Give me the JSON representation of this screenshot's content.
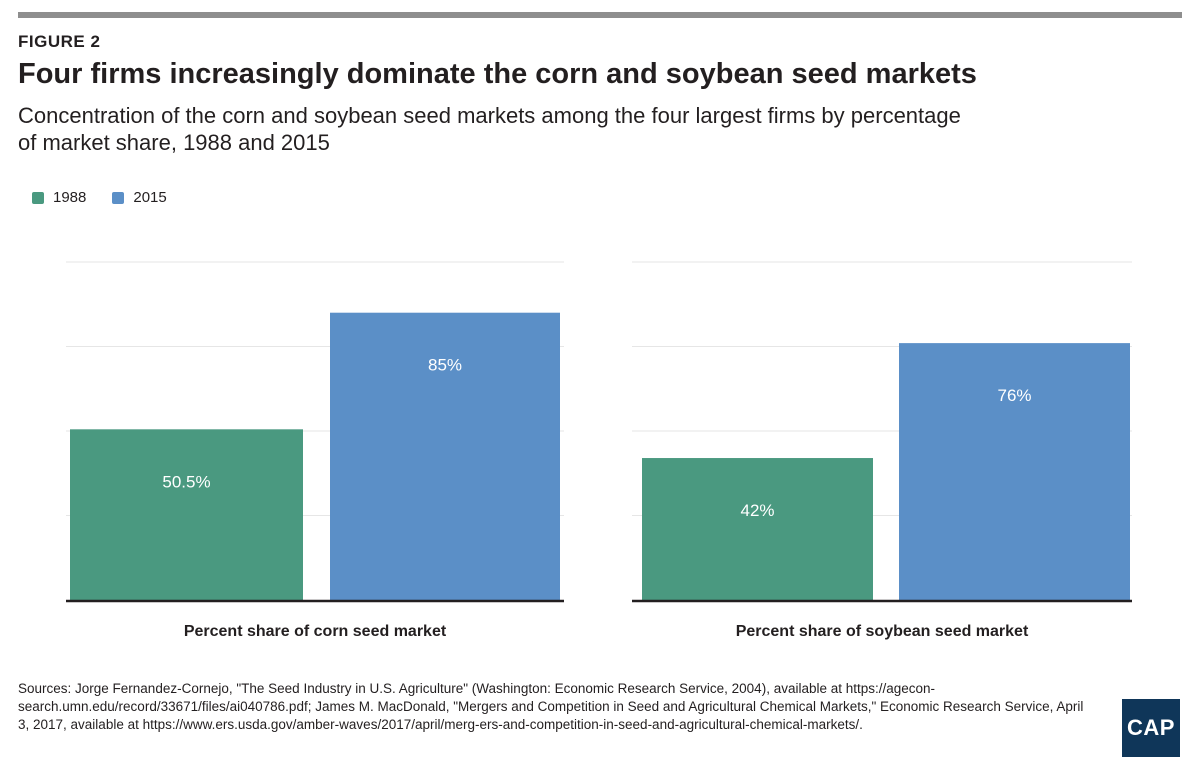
{
  "header": {
    "figure_label": "FIGURE 2",
    "title": "Four firms increasingly dominate the corn and soybean seed markets",
    "subtitle": "Concentration of the corn and soybean seed markets among the four largest firms by percentage of market share, 1988 and 2015"
  },
  "colors": {
    "c1988": "#4a9980",
    "c2015": "#5b8fc7",
    "grid": "#e6e6e6",
    "axis": "#231f20"
  },
  "chart_data": {
    "type": "bar",
    "title": "Four firms increasingly dominate the corn and soybean seed markets",
    "ylabel": "",
    "ylim": [
      0,
      100
    ],
    "grid": true,
    "legend": "top-left",
    "series": [
      {
        "name": "1988",
        "color": "#4a9980"
      },
      {
        "name": "2015",
        "color": "#5b8fc7"
      }
    ],
    "panels": [
      {
        "xlabel": "Percent share of corn seed market",
        "values": [
          50.5,
          85
        ],
        "labels": [
          "50.5%",
          "85%"
        ]
      },
      {
        "xlabel": "Percent share of soybean seed market",
        "values": [
          42,
          76
        ],
        "labels": [
          "42%",
          "76%"
        ]
      }
    ]
  },
  "sources": "Sources: Jorge Fernandez-Cornejo, \"The Seed Industry in U.S. Agriculture\" (Washington: Economic Research Service, 2004), available at https://agecon-search.umn.edu/record/33671/files/ai040786.pdf; James M. MacDonald, \"Mergers and Competition in Seed and Agricultural Chemical Markets,\" Economic Research Service, April 3, 2017, available at https://www.ers.usda.gov/amber-waves/2017/april/merg-ers-and-competition-in-seed-and-agricultural-chemical-markets/.",
  "logo": {
    "text": "CAP"
  }
}
